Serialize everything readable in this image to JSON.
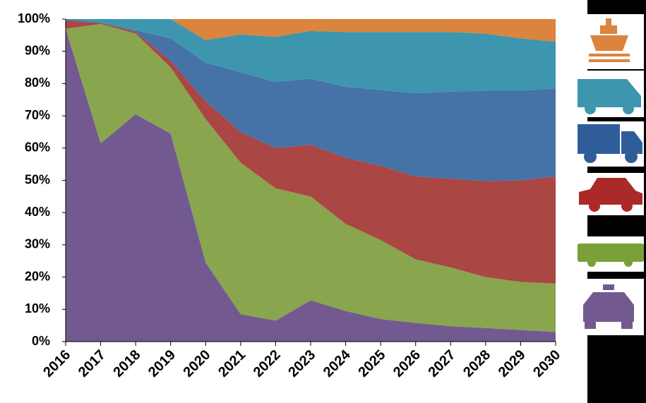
{
  "chart_data": {
    "type": "stacked-area",
    "categories": [
      "2016",
      "2017",
      "2018",
      "2019",
      "2020",
      "2021",
      "2022",
      "2023",
      "2024",
      "2025",
      "2026",
      "2027",
      "2028",
      "2029",
      "2030"
    ],
    "series": [
      {
        "color": "#725a91",
        "values": [
          97,
          61.5,
          70.5,
          64.5,
          24.5,
          8.5,
          6.5,
          12.8,
          9.5,
          7,
          5.8,
          4.8,
          4.2,
          3.6,
          3
        ]
      },
      {
        "color": "#89a54e",
        "values": [
          0,
          37,
          25,
          20.5,
          44.5,
          47,
          41,
          32.2,
          27,
          24.5,
          19.7,
          18.2,
          15.8,
          14.9,
          15
        ]
      },
      {
        "color": "#aa4643",
        "values": [
          2.5,
          0.3,
          0.5,
          2,
          5.5,
          9.5,
          12.5,
          16,
          20.5,
          23,
          25.7,
          27.5,
          29.8,
          31.5,
          33.2
        ]
      },
      {
        "color": "#4572a7",
        "values": [
          0.5,
          0.2,
          0.5,
          7,
          12,
          18.5,
          20.5,
          20.5,
          22,
          23.5,
          25.8,
          27,
          28,
          27.8,
          27.3
        ]
      },
      {
        "color": "#3d96ae",
        "values": [
          0,
          1,
          3.5,
          6,
          7,
          11.7,
          14,
          14.8,
          17,
          18,
          19,
          18.5,
          17.7,
          16.2,
          14.5
        ]
      },
      {
        "color": "#db843d",
        "values": [
          0,
          0,
          0,
          0,
          6.5,
          4.8,
          5.5,
          3.7,
          4,
          4,
          4,
          4,
          4.5,
          6,
          7
        ]
      }
    ],
    "ylim": [
      0,
      100
    ],
    "yticks": [
      {
        "value": 0,
        "label": "0%"
      },
      {
        "value": 10,
        "label": "10%"
      },
      {
        "value": 20,
        "label": "20%"
      },
      {
        "value": 30,
        "label": "30%"
      },
      {
        "value": 40,
        "label": "40%"
      },
      {
        "value": 50,
        "label": "50%"
      },
      {
        "value": 60,
        "label": "60%"
      },
      {
        "value": 70,
        "label": "70%"
      },
      {
        "value": 80,
        "label": "80%"
      },
      {
        "value": 90,
        "label": "90%"
      },
      {
        "value": 100,
        "label": "100%"
      }
    ]
  }
}
